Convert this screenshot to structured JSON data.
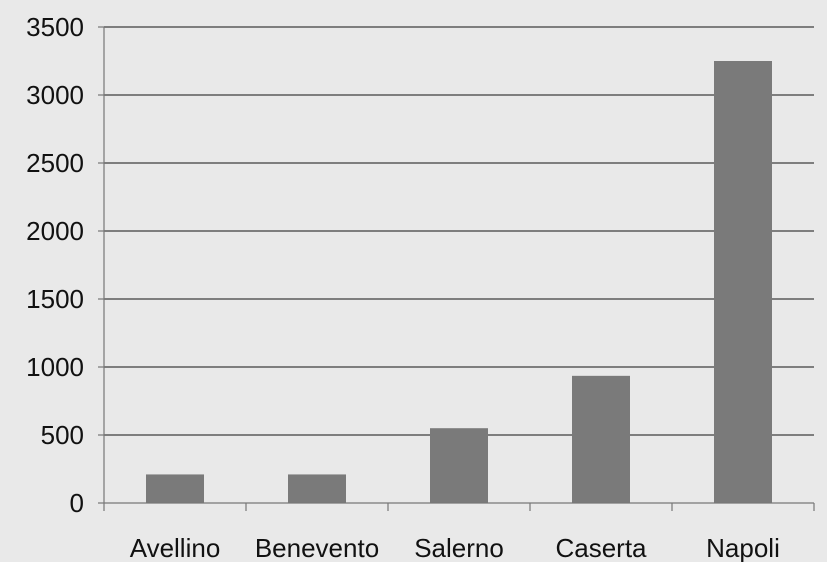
{
  "chart_data": {
    "type": "bar",
    "categories": [
      "Avellino",
      "Benevento",
      "Salerno",
      "Caserta",
      "Napoli"
    ],
    "values": [
      210,
      210,
      550,
      935,
      3250
    ],
    "ylim": [
      0,
      3500
    ],
    "yticks": [
      0,
      500,
      1000,
      1500,
      2000,
      2500,
      3000,
      3500
    ],
    "title": "",
    "xlabel": "",
    "ylabel": "",
    "grid": true,
    "colors": {
      "bar": "#7a7a7a",
      "background": "#e9e9e9",
      "grid": "#5a5a5a",
      "axis": "#777777"
    }
  }
}
